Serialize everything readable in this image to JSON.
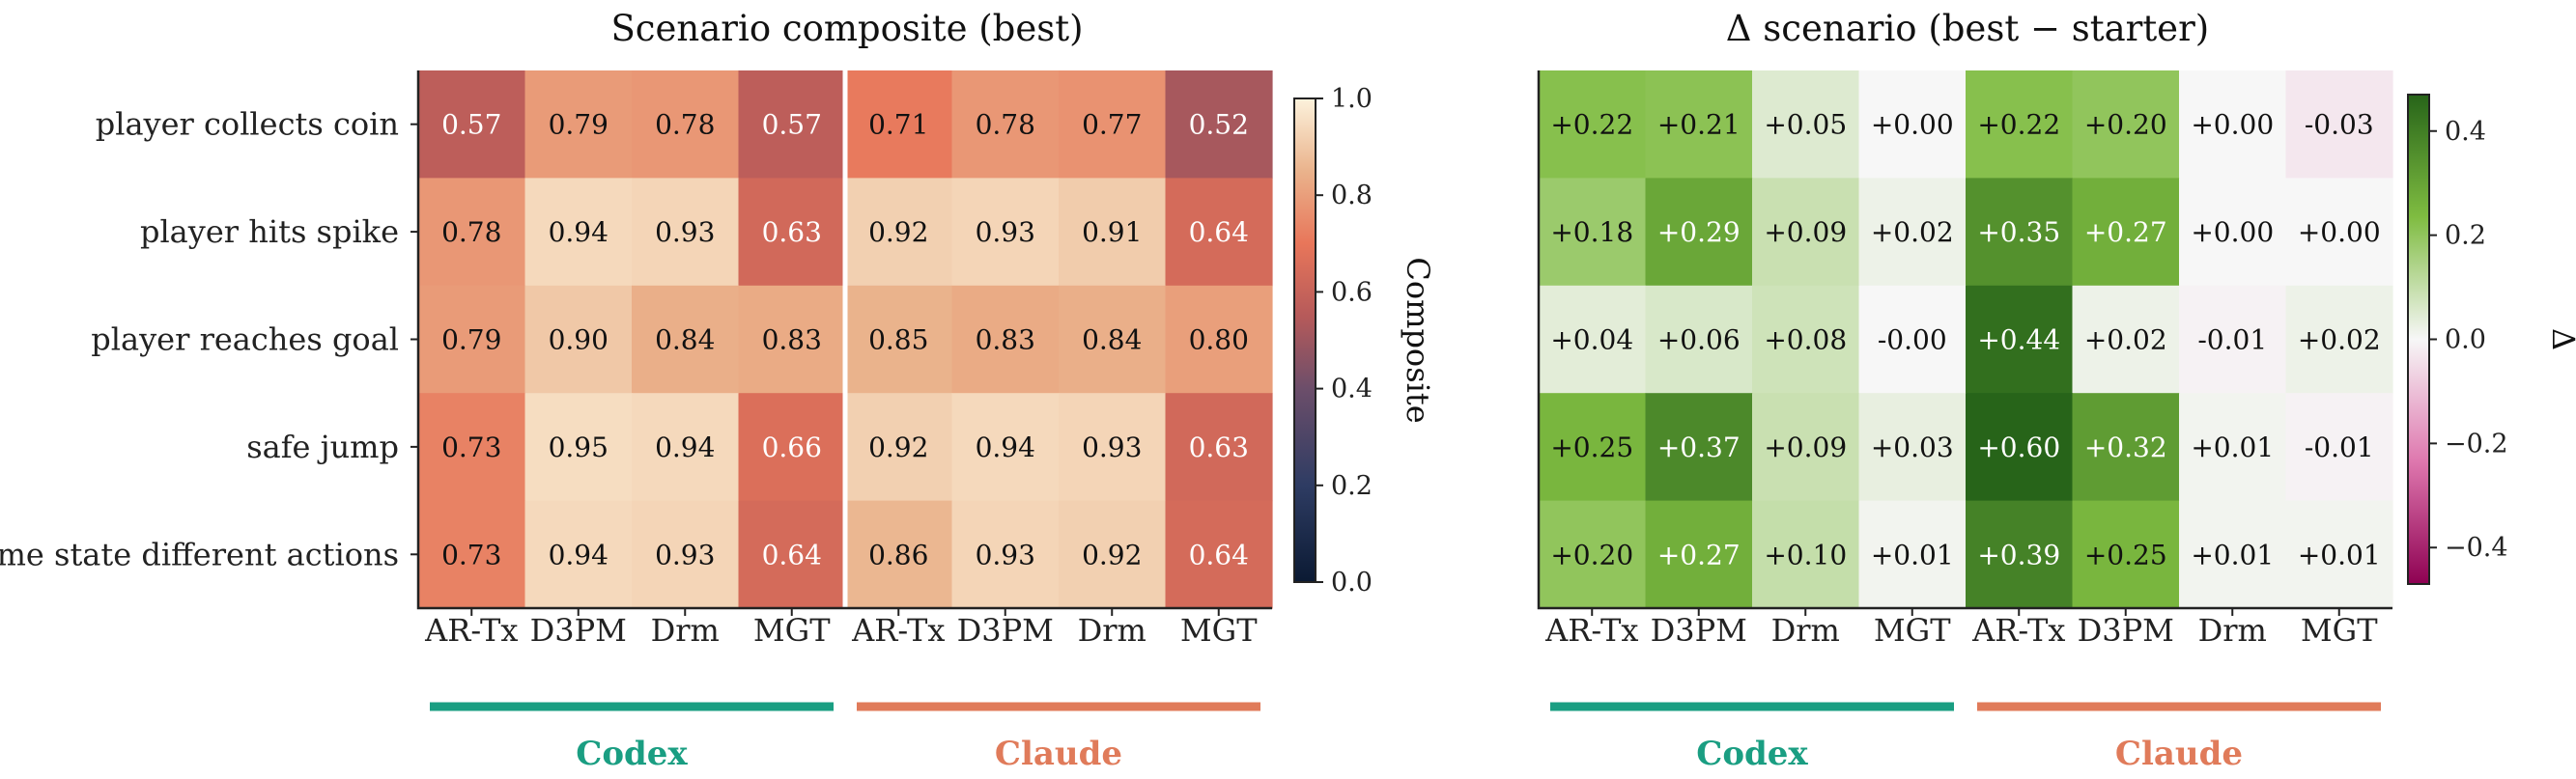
{
  "chart_data": [
    {
      "type": "heatmap",
      "title": "Scenario composite (best)",
      "rows": [
        "player collects coin",
        "player hits spike",
        "player reaches goal",
        "safe jump",
        "same state different actions"
      ],
      "columns": [
        "AR-Tx",
        "D3PM",
        "Drm",
        "MGT",
        "AR-Tx",
        "D3PM",
        "Drm",
        "MGT"
      ],
      "groups": [
        {
          "name": "Codex",
          "color": "#1a9e82",
          "columns": [
            0,
            1,
            2,
            3
          ]
        },
        {
          "name": "Claude",
          "color": "#e07b5a",
          "columns": [
            4,
            5,
            6,
            7
          ]
        }
      ],
      "values": [
        [
          0.57,
          0.79,
          0.78,
          0.57,
          0.71,
          0.78,
          0.77,
          0.52
        ],
        [
          0.78,
          0.94,
          0.93,
          0.63,
          0.92,
          0.93,
          0.91,
          0.64
        ],
        [
          0.79,
          0.9,
          0.84,
          0.83,
          0.85,
          0.83,
          0.84,
          0.8
        ],
        [
          0.73,
          0.95,
          0.94,
          0.66,
          0.92,
          0.94,
          0.93,
          0.63
        ],
        [
          0.73,
          0.94,
          0.93,
          0.64,
          0.86,
          0.93,
          0.92,
          0.64
        ]
      ],
      "labels": [
        [
          "0.57",
          "0.79",
          "0.78",
          "0.57",
          "0.71",
          "0.78",
          "0.77",
          "0.52"
        ],
        [
          "0.78",
          "0.94",
          "0.93",
          "0.63",
          "0.92",
          "0.93",
          "0.91",
          "0.64"
        ],
        [
          "0.79",
          "0.90",
          "0.84",
          "0.83",
          "0.85",
          "0.83",
          "0.84",
          "0.80"
        ],
        [
          "0.73",
          "0.95",
          "0.94",
          "0.66",
          "0.92",
          "0.94",
          "0.93",
          "0.63"
        ],
        [
          "0.73",
          "0.94",
          "0.93",
          "0.64",
          "0.86",
          "0.93",
          "0.92",
          "0.64"
        ]
      ],
      "colorbar": {
        "label": "Composite",
        "range": [
          0.0,
          1.0
        ],
        "ticks": [
          "0.0",
          "0.2",
          "0.4",
          "0.6",
          "0.8",
          "1.0"
        ]
      },
      "colormap": "dark navy → red-orange → pale cream",
      "group_separator": true
    },
    {
      "type": "heatmap",
      "title": "Δ scenario (best − starter)",
      "rows": [
        "player collects coin",
        "player hits spike",
        "player reaches goal",
        "safe jump",
        "same state different actions"
      ],
      "columns": [
        "AR-Tx",
        "D3PM",
        "Drm",
        "MGT",
        "AR-Tx",
        "D3PM",
        "Drm",
        "MGT"
      ],
      "groups": [
        {
          "name": "Codex",
          "color": "#1a9e82",
          "columns": [
            0,
            1,
            2,
            3
          ]
        },
        {
          "name": "Claude",
          "color": "#e07b5a",
          "columns": [
            4,
            5,
            6,
            7
          ]
        }
      ],
      "values": [
        [
          0.22,
          0.21,
          0.05,
          0.0,
          0.22,
          0.2,
          0.0,
          -0.03
        ],
        [
          0.18,
          0.29,
          0.09,
          0.02,
          0.35,
          0.27,
          0.0,
          0.0
        ],
        [
          0.04,
          0.06,
          0.08,
          -0.0,
          0.44,
          0.02,
          -0.01,
          0.02
        ],
        [
          0.25,
          0.37,
          0.09,
          0.03,
          0.6,
          0.32,
          0.01,
          -0.01
        ],
        [
          0.2,
          0.27,
          0.1,
          0.01,
          0.39,
          0.25,
          0.01,
          0.01
        ]
      ],
      "labels": [
        [
          "+0.22",
          "+0.21",
          "+0.05",
          "+0.00",
          "+0.22",
          "+0.20",
          "+0.00",
          "-0.03"
        ],
        [
          "+0.18",
          "+0.29",
          "+0.09",
          "+0.02",
          "+0.35",
          "+0.27",
          "+0.00",
          "+0.00"
        ],
        [
          "+0.04",
          "+0.06",
          "+0.08",
          "-0.00",
          "+0.44",
          "+0.02",
          "-0.01",
          "+0.02"
        ],
        [
          "+0.25",
          "+0.37",
          "+0.09",
          "+0.03",
          "+0.60",
          "+0.32",
          "+0.01",
          "-0.01"
        ],
        [
          "+0.20",
          "+0.27",
          "+0.10",
          "+0.01",
          "+0.39",
          "+0.25",
          "+0.01",
          "+0.01"
        ]
      ],
      "colorbar": {
        "label": "Δ",
        "range": [
          -0.47,
          0.47
        ],
        "ticks": [
          "−0.4",
          "−0.2",
          "0.0",
          "0.2",
          "0.4"
        ],
        "tick_values": [
          -0.4,
          -0.2,
          0.0,
          0.2,
          0.4
        ]
      },
      "colormap": "PiYG (magenta → white → dark green)",
      "group_separator": false
    }
  ]
}
